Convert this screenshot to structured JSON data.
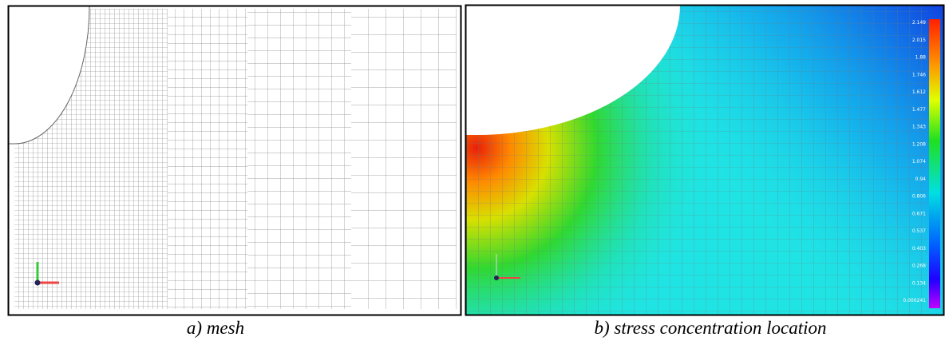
{
  "panels": [
    {
      "caption": "a) mesh"
    },
    {
      "caption": "b) stress concentration location",
      "colorbar_labels": [
        "2.149",
        "2.015",
        "1.88",
        "1.746",
        "1.612",
        "1.477",
        "1.343",
        "1.208",
        "1.074",
        "0.94",
        "0.806",
        "0.671",
        "0.537",
        "0.403",
        "0.268",
        "0.134",
        "0.000241"
      ]
    }
  ]
}
